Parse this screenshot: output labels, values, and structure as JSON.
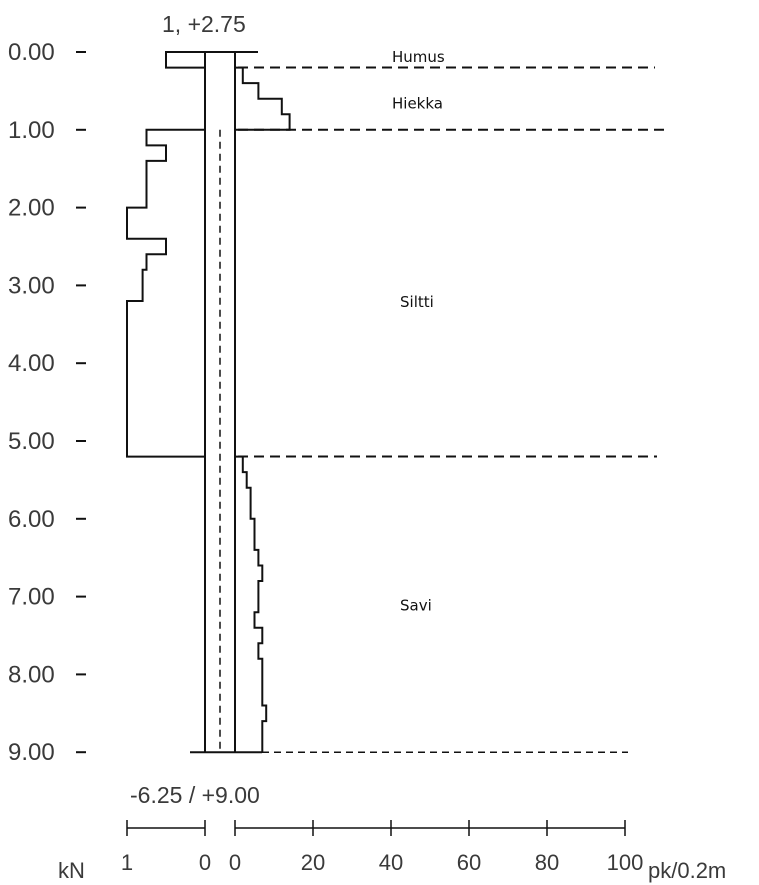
{
  "chart_data": {
    "type": "line",
    "depth_ticks": [
      "0.00",
      "1.00",
      "2.00",
      "3.00",
      "4.00",
      "5.00",
      "6.00",
      "7.00",
      "8.00",
      "9.00"
    ],
    "top_label": "1, +2.75",
    "bottom_label": "-6.25 / +9.00",
    "left_axis": {
      "unit": "kN",
      "ticks": [
        {
          "value": 1,
          "label": "1"
        },
        {
          "value": 0,
          "label": "0"
        }
      ]
    },
    "right_axis": {
      "unit": "pk/0.2m",
      "ticks": [
        {
          "value": 0,
          "label": "0"
        },
        {
          "value": 20,
          "label": "20"
        },
        {
          "value": 40,
          "label": "40"
        },
        {
          "value": 60,
          "label": "60"
        },
        {
          "value": 80,
          "label": "80"
        },
        {
          "value": 100,
          "label": "100"
        }
      ]
    },
    "layers": [
      {
        "name": "Humus",
        "label_depth": 0.0,
        "boundary": 0.2
      },
      {
        "name": "Hiekka",
        "label_depth": 0.6,
        "boundary": 1.0
      },
      {
        "name": "Siltti",
        "label_depth": 3.15,
        "boundary": 5.2
      },
      {
        "name": "Savi",
        "label_depth": 7.05,
        "boundary": 9.0
      }
    ],
    "left_series": {
      "name": "",
      "depth": [
        0.0,
        0.2,
        0.2,
        1.0,
        1.0,
        1.2,
        1.2,
        1.4,
        1.4,
        2.0,
        2.0,
        2.4,
        2.4,
        2.6,
        2.6,
        2.8,
        2.8,
        3.2,
        3.2,
        5.2,
        5.2
      ],
      "value": [
        0.5,
        0.5,
        0.0,
        0.0,
        0.75,
        0.75,
        0.5,
        0.5,
        0.75,
        0.75,
        1.0,
        1.0,
        0.5,
        0.5,
        0.75,
        0.75,
        0.8,
        0.8,
        1.0,
        1.0,
        0.0
      ]
    },
    "right_series": {
      "name": "",
      "depth": [
        0.0,
        0.2,
        0.2,
        0.4,
        0.4,
        0.6,
        0.6,
        0.8,
        0.8,
        1.0,
        1.0,
        5.2,
        5.2,
        5.4,
        5.4,
        5.6,
        5.6,
        6.0,
        6.0,
        6.4,
        6.4,
        6.6,
        6.6,
        6.8,
        6.8,
        7.2,
        7.2,
        7.4,
        7.4,
        7.6,
        7.6,
        7.8,
        7.8,
        8.0,
        8.0,
        8.2,
        8.2,
        8.4,
        8.4,
        8.6,
        8.6,
        9.0
      ],
      "value": [
        0,
        0,
        2,
        2,
        6,
        6,
        12,
        12,
        14,
        14,
        0,
        0,
        2,
        2,
        3,
        3,
        4,
        4,
        5,
        5,
        6,
        6,
        7,
        7,
        6,
        6,
        5,
        5,
        7,
        7,
        6,
        6,
        7,
        7,
        7,
        7,
        7,
        7,
        8,
        8,
        7,
        7
      ]
    }
  }
}
